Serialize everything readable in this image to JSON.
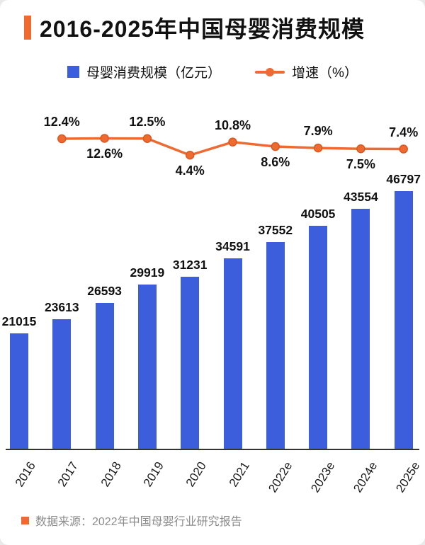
{
  "title": "2016-2025年中国母婴消费规模",
  "legend": {
    "bar_label": "母婴消费规模（亿元）",
    "line_label": "增速（%）"
  },
  "source": "数据来源：2022年中国母婴行业研究报告",
  "colors": {
    "bar": "#3d5edc",
    "line": "#ee6a31",
    "line_dark": "#d8581f",
    "accent": "#ee6a31",
    "text": "#111111",
    "source_text": "#8c8c8c"
  },
  "chart_data": {
    "type": "bar",
    "title": "2016-2025年中国母婴消费规模",
    "categories": [
      "2016",
      "2017",
      "2018",
      "2019",
      "2020",
      "2021",
      "2022e",
      "2023e",
      "2024e",
      "2025e"
    ],
    "series": [
      {
        "name": "母婴消费规模（亿元）",
        "type": "bar",
        "values": [
          21015,
          23613,
          26593,
          29919,
          31231,
          34591,
          37552,
          40505,
          43554,
          46797
        ]
      },
      {
        "name": "增速（%）",
        "type": "line",
        "x": [
          "2017",
          "2018",
          "2019",
          "2020",
          "2021",
          "2022e",
          "2023e",
          "2024e",
          "2025e"
        ],
        "values": [
          12.4,
          12.6,
          12.5,
          4.4,
          10.8,
          8.6,
          7.9,
          7.5,
          7.4
        ],
        "label_positions": [
          "above",
          "below",
          "above",
          "below",
          "above",
          "below",
          "above",
          "below",
          "above"
        ]
      }
    ],
    "xlabel": "",
    "ylabel": "",
    "grid": false,
    "legend_position": "top"
  }
}
